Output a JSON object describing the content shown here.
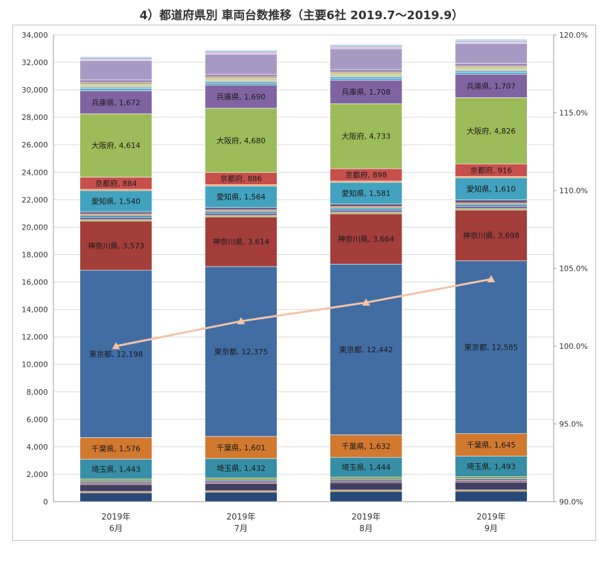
{
  "chart_data": {
    "type": "bar",
    "stacked": true,
    "title": "4）都道府県別 車両台数推移（主要6社 2019.7～2019.9）",
    "categories": [
      [
        "2019年",
        "6月"
      ],
      [
        "2019年",
        "7月"
      ],
      [
        "2019年",
        "8月"
      ],
      [
        "2019年",
        "9月"
      ]
    ],
    "ylim": [
      0,
      34000
    ],
    "y_ticks": [
      "0",
      "2,000",
      "4,000",
      "6,000",
      "8,000",
      "10,000",
      "12,000",
      "14,000",
      "16,000",
      "18,000",
      "20,000",
      "22,000",
      "24,000",
      "26,000",
      "28,000",
      "30,000",
      "32,000",
      "34,000"
    ],
    "y2lim": [
      90,
      120
    ],
    "y2_ticks": [
      "90.0%",
      "95.0%",
      "100.0%",
      "105.0%",
      "110.0%",
      "115.0%",
      "120.0%"
    ],
    "grid": true,
    "series": [
      {
        "name": "",
        "color": "#274a78",
        "values": [
          650,
          700,
          750,
          760
        ],
        "show_label": false
      },
      {
        "name": "",
        "color": "#d5852c",
        "values": [
          100,
          100,
          100,
          100
        ],
        "show_label": false
      },
      {
        "name": "",
        "color": "#3f3f66",
        "values": [
          500,
          520,
          540,
          560
        ],
        "show_label": false
      },
      {
        "name": "",
        "color": "#993333",
        "values": [
          100,
          100,
          100,
          100
        ],
        "show_label": false
      },
      {
        "name": "",
        "color": "#5b7fb3",
        "values": [
          150,
          150,
          150,
          150
        ],
        "show_label": false
      },
      {
        "name": "",
        "color": "#8a9a3c",
        "values": [
          150,
          150,
          150,
          150
        ],
        "show_label": false
      },
      {
        "name": "埼玉県",
        "color": "#368fa6",
        "values": [
          1443,
          1432,
          1444,
          1493
        ],
        "label": [
          "埼玉県, 1,443",
          "埼玉県, 1,432",
          "埼玉県, 1,444",
          "埼玉県, 1,493"
        ],
        "show_label": true
      },
      {
        "name": "千葉県",
        "color": "#d27930",
        "values": [
          1576,
          1601,
          1632,
          1645
        ],
        "label": [
          "千葉県, 1,576",
          "千葉県, 1,601",
          "千葉県, 1,632",
          "千葉県, 1,645"
        ],
        "show_label": true
      },
      {
        "name": "東京都",
        "color": "#416da3",
        "values": [
          12198,
          12375,
          12442,
          12585
        ],
        "label": [
          "東京都, 12,198",
          "東京都, 12,375",
          "東京都, 12,442",
          "東京都, 12,585"
        ],
        "show_label": true
      },
      {
        "name": "神奈川県",
        "color": "#a33e3b",
        "values": [
          3573,
          3614,
          3664,
          3698
        ],
        "label": [
          "神奈川県, 3,573",
          "神奈川県, 3,614",
          "神奈川県, 3,664",
          "神奈川県, 3,698"
        ],
        "show_label": true
      },
      {
        "name": "",
        "color": "#93b350",
        "values": [
          120,
          120,
          120,
          120
        ],
        "show_label": false
      },
      {
        "name": "",
        "color": "#7554a0",
        "values": [
          150,
          150,
          150,
          150
        ],
        "show_label": false
      },
      {
        "name": "",
        "color": "#3ba1bb",
        "values": [
          150,
          150,
          150,
          150
        ],
        "show_label": false
      },
      {
        "name": "",
        "color": "#e08b39",
        "values": [
          100,
          100,
          100,
          100
        ],
        "show_label": false
      },
      {
        "name": "",
        "color": "#6a5a8a",
        "values": [
          160,
          170,
          190,
          220
        ],
        "show_label": false
      },
      {
        "name": "愛知県",
        "color": "#42a2c0",
        "values": [
          1540,
          1564,
          1581,
          1610
        ],
        "label": [
          "愛知県, 1,540",
          "愛知県, 1,564",
          "愛知県, 1,581",
          "愛知県, 1,610"
        ],
        "show_label": true
      },
      {
        "name": "",
        "color": "#e8954a",
        "values": [
          100,
          100,
          100,
          100
        ],
        "show_label": false
      },
      {
        "name": "京都府",
        "color": "#c7504d",
        "values": [
          884,
          886,
          898,
          916
        ],
        "label": [
          "京都府, 884",
          "京都府, 886",
          "京都府, 898",
          "京都府, 916"
        ],
        "show_label": true
      },
      {
        "name": "大阪府",
        "color": "#9cbb59",
        "values": [
          4614,
          4680,
          4733,
          4826
        ],
        "label": [
          "大阪府, 4,614",
          "大阪府, 4,680",
          "大阪府, 4,733",
          "大阪府, 4,826"
        ],
        "show_label": true
      },
      {
        "name": "兵庫県",
        "color": "#8064a2",
        "values": [
          1672,
          1690,
          1708,
          1707
        ],
        "label": [
          "兵庫県, 1,672",
          "兵庫県, 1,690",
          "兵庫県, 1,708",
          "兵庫県, 1,707"
        ],
        "show_label": true
      },
      {
        "name": "",
        "color": "#4bacc6",
        "values": [
          150,
          150,
          150,
          150
        ],
        "show_label": false
      },
      {
        "name": "",
        "color": "#7d9fcc",
        "values": [
          120,
          120,
          120,
          120
        ],
        "show_label": false
      },
      {
        "name": "",
        "color": "#c9d79c",
        "values": [
          200,
          200,
          200,
          200
        ],
        "show_label": false
      },
      {
        "name": "",
        "color": "#b6a06a",
        "values": [
          120,
          120,
          120,
          120
        ],
        "show_label": false
      },
      {
        "name": "",
        "color": "#9e8cb6",
        "values": [
          200,
          200,
          200,
          200
        ],
        "show_label": false
      },
      {
        "name": "",
        "color": "#a899c4",
        "values": [
          1400,
          1450,
          1500,
          1450
        ],
        "show_label": false
      },
      {
        "name": "",
        "color": "#c7c0d8",
        "values": [
          100,
          100,
          100,
          100
        ],
        "show_label": false
      },
      {
        "name": "",
        "color": "#b3a4cd",
        "values": [
          100,
          100,
          100,
          100
        ],
        "show_label": false
      },
      {
        "name": "",
        "color": "#9cc8e0",
        "values": [
          100,
          100,
          100,
          100
        ],
        "show_label": false
      }
    ],
    "line_series": {
      "name": "",
      "color": "#f4c3a8",
      "axis": "secondary",
      "values": [
        100.0,
        101.6,
        102.8,
        104.3
      ]
    }
  }
}
